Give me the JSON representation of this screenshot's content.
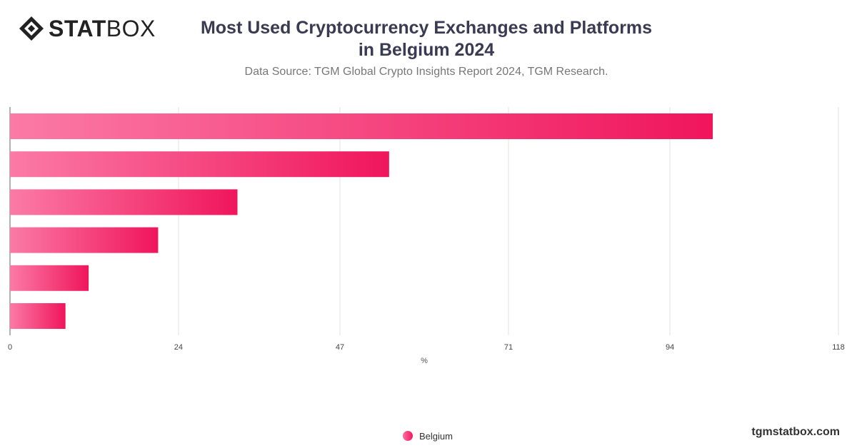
{
  "brand": {
    "logo_bold": "STAT",
    "logo_light": "BOX",
    "website": "tgmstatbox.com"
  },
  "chart_data": {
    "type": "bar",
    "orientation": "horizontal",
    "title_line1": "Most Used Cryptocurrency Exchanges and Platforms",
    "title_line2": "in Belgium 2024",
    "subtitle": "Data Source: TGM Global Crypto Insights Report 2024, TGM Research.",
    "xlabel": "%",
    "xlim": [
      0,
      118
    ],
    "ticks": [
      "0",
      "24",
      "47",
      "71",
      "94",
      "118"
    ],
    "tick_values": [
      0,
      24,
      47,
      71,
      94,
      118
    ],
    "grid": true,
    "legend_position": "bottom",
    "series": [
      {
        "name": "Belgium",
        "values": [
          100.1,
          54.0,
          32.4,
          21.1,
          11.2,
          7.9
        ]
      }
    ],
    "colors": {
      "bar_start": "#fb7aa6",
      "bar_end": "#f0155d",
      "grid": "#e3e3e3",
      "axis": "#666666"
    }
  }
}
